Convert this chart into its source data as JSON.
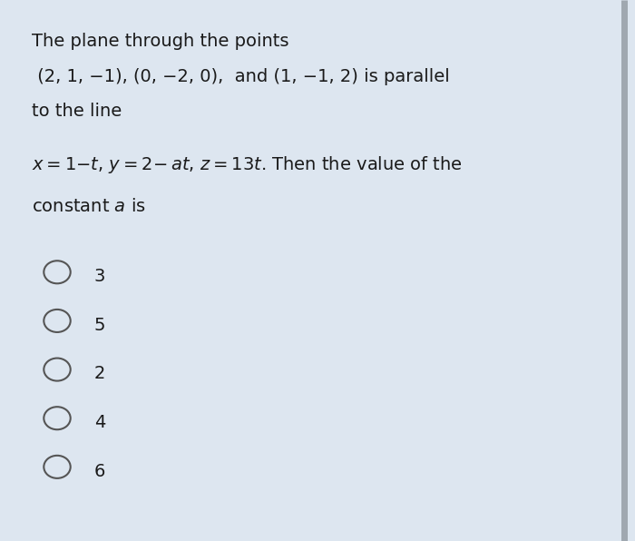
{
  "background_color": "#dde6f0",
  "text_color": "#1a1a1a",
  "options": [
    "3",
    "5",
    "2",
    "4",
    "6"
  ],
  "figsize": [
    7.0,
    5.96
  ],
  "dpi": 100,
  "right_border_color": "#a0a8b0",
  "circle_edge_color": "#555555"
}
